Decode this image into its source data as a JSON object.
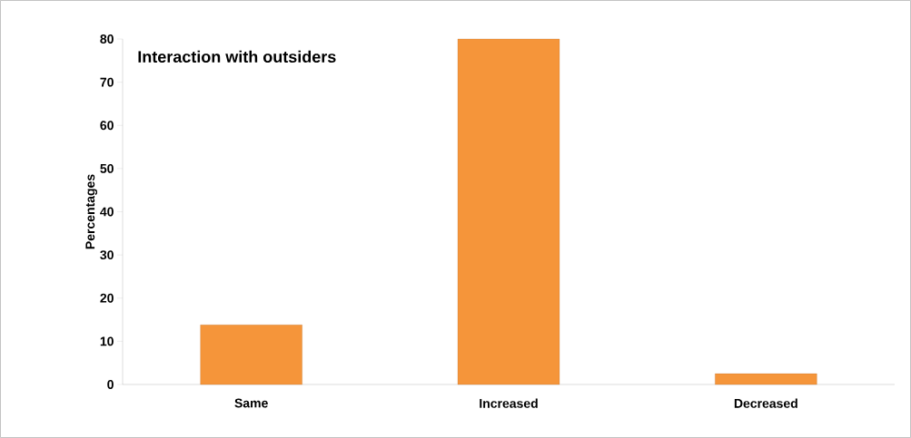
{
  "chart_data": {
    "type": "bar",
    "title": "Interaction with outsiders",
    "ylabel": "Percentages",
    "categories": [
      "Same",
      "Increased",
      "Decreased"
    ],
    "values": [
      13.8,
      80,
      2.5
    ],
    "color": "#f5953a",
    "ylim": [
      0,
      80
    ],
    "yticks": [
      0,
      10,
      20,
      30,
      40,
      50,
      60,
      70,
      80
    ],
    "grid": false
  }
}
